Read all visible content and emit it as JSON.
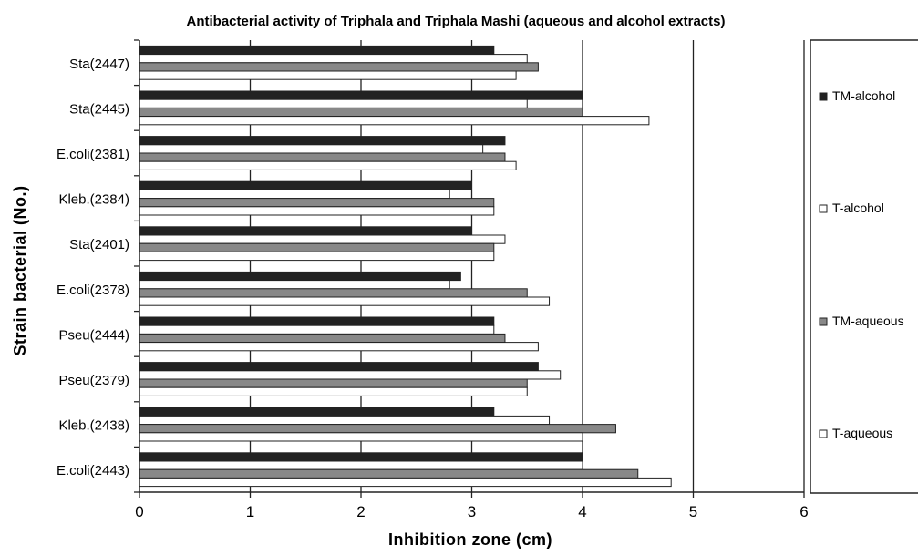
{
  "chart_data": {
    "type": "bar",
    "orientation": "horizontal",
    "title": "Antibacterial activity of Triphala and Triphala Mashi (aqueous and alcohol extracts)",
    "xlabel": "Inhibition zone (cm)",
    "ylabel": "Strain bacterial (No.)",
    "xlim": [
      0,
      6
    ],
    "xticks": [
      "0",
      "1",
      "2",
      "3",
      "4",
      "5",
      "6"
    ],
    "gridlines": "vertical, every 1 cm",
    "legend_position": "right",
    "categories": [
      "Sta(2447)",
      "Sta(2445)",
      "E.coli(2381)",
      "Kleb.(2384)",
      "Sta(2401)",
      "E.coli(2378)",
      "Pseu(2444)",
      "Pseu(2379)",
      "Kleb.(2438)",
      "E.coli(2443)"
    ],
    "series": [
      {
        "name": "TM-alcohol",
        "color": "#222222",
        "values": [
          3.2,
          4.0,
          3.3,
          3.0,
          3.0,
          2.9,
          3.2,
          3.6,
          3.2,
          4.0
        ]
      },
      {
        "name": "T-alcohol",
        "color": "#ffffff",
        "values": [
          3.5,
          3.5,
          3.1,
          2.8,
          3.3,
          2.8,
          3.2,
          3.8,
          3.7,
          4.0
        ]
      },
      {
        "name": "TM-aqueous",
        "color": "#888888",
        "values": [
          3.6,
          4.0,
          3.3,
          3.2,
          3.2,
          3.5,
          3.3,
          3.5,
          4.3,
          4.5
        ]
      },
      {
        "name": "T-aqueous",
        "color": "#ffffff",
        "values": [
          3.4,
          4.6,
          3.4,
          3.2,
          3.2,
          3.7,
          3.6,
          3.5,
          4.0,
          4.8
        ]
      }
    ]
  }
}
